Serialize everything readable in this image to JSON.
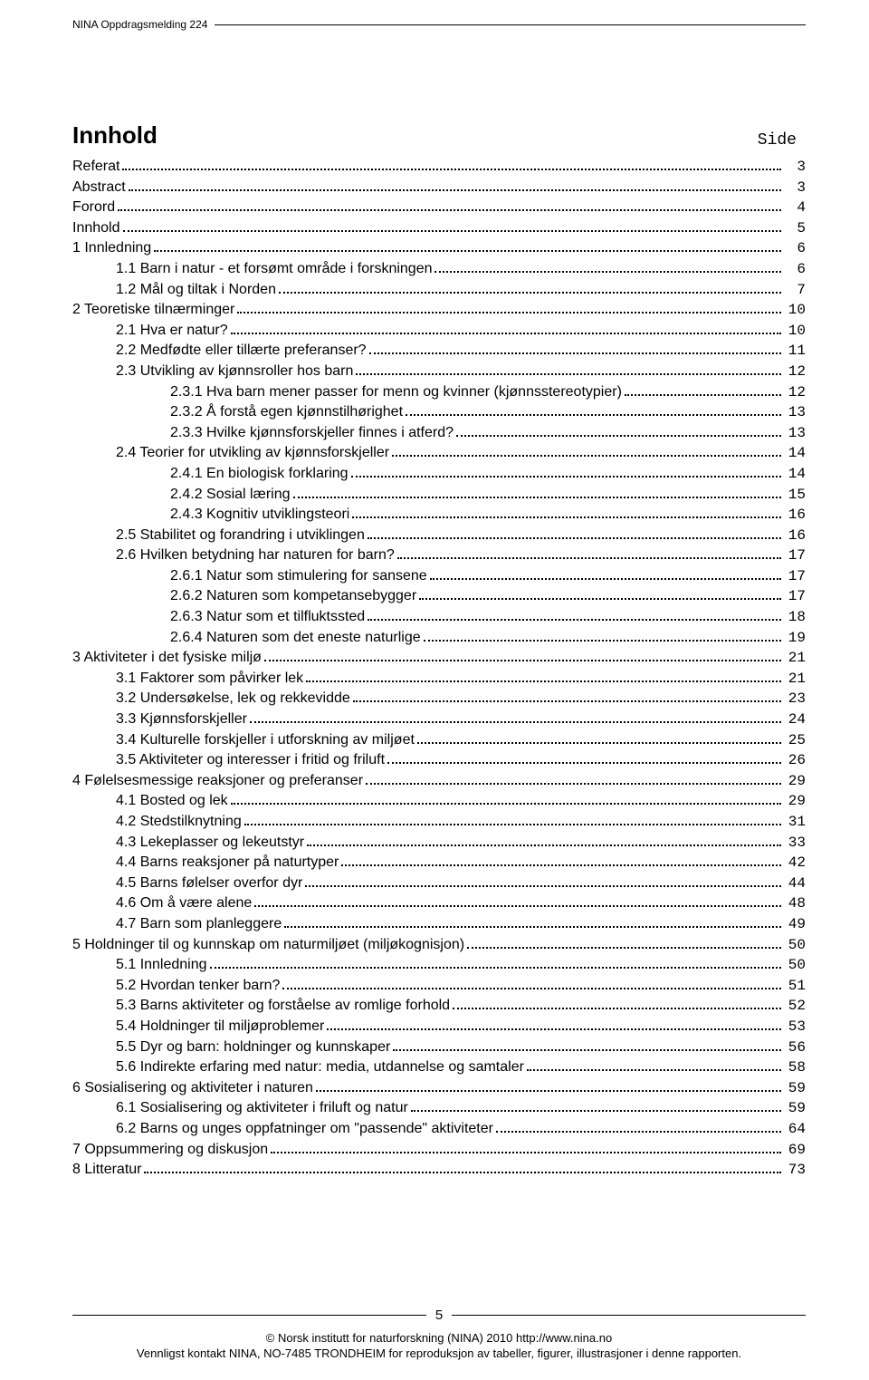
{
  "header": "NINA Oppdragsmelding 224",
  "title": "Innhold",
  "side_label": "Side",
  "toc": [
    {
      "lvl": 0,
      "label": "Referat",
      "page": "3"
    },
    {
      "lvl": 0,
      "label": "Abstract",
      "page": "3"
    },
    {
      "lvl": 0,
      "label": "Forord",
      "page": "4"
    },
    {
      "lvl": 0,
      "label": "Innhold",
      "page": "5"
    },
    {
      "lvl": 0,
      "label": "1 Innledning",
      "page": "6"
    },
    {
      "lvl": 1,
      "label": "1.1 Barn i natur - et forsømt område i forskningen",
      "page": "6"
    },
    {
      "lvl": 1,
      "label": "1.2 Mål og tiltak i Norden",
      "page": "7"
    },
    {
      "lvl": 0,
      "label": "2 Teoretiske tilnærminger",
      "page": "10"
    },
    {
      "lvl": 1,
      "label": "2.1 Hva er natur?",
      "page": "10"
    },
    {
      "lvl": 1,
      "label": "2.2 Medfødte eller tillærte preferanser?",
      "page": "11"
    },
    {
      "lvl": 1,
      "label": "2.3 Utvikling av kjønnsroller hos barn",
      "page": "12"
    },
    {
      "lvl": 2,
      "label": "2.3.1 Hva barn mener passer for menn og kvinner (kjønnsstereotypier)",
      "page": "12"
    },
    {
      "lvl": 2,
      "label": "2.3.2 Å forstå egen kjønnstilhørighet",
      "page": "13"
    },
    {
      "lvl": 2,
      "label": "2.3.3 Hvilke kjønnsforskjeller finnes i atferd?",
      "page": "13"
    },
    {
      "lvl": 1,
      "label": "2.4 Teorier for utvikling av kjønnsforskjeller",
      "page": "14"
    },
    {
      "lvl": 2,
      "label": "2.4.1 En biologisk forklaring",
      "page": "14"
    },
    {
      "lvl": 2,
      "label": "2.4.2 Sosial læring",
      "page": "15"
    },
    {
      "lvl": 2,
      "label": "2.4.3 Kognitiv utviklingsteori",
      "page": "16"
    },
    {
      "lvl": 1,
      "label": "2.5 Stabilitet og forandring i utviklingen",
      "page": "16"
    },
    {
      "lvl": 1,
      "label": "2.6 Hvilken betydning har naturen for barn?",
      "page": "17"
    },
    {
      "lvl": 2,
      "label": "2.6.1 Natur som stimulering for sansene",
      "page": "17"
    },
    {
      "lvl": 2,
      "label": "2.6.2 Naturen som kompetansebygger",
      "page": "17"
    },
    {
      "lvl": 2,
      "label": "2.6.3 Natur som et tilfluktssted",
      "page": "18"
    },
    {
      "lvl": 2,
      "label": "2.6.4 Naturen som det eneste naturlige",
      "page": "19"
    },
    {
      "lvl": 0,
      "label": "3 Aktiviteter i det fysiske miljø",
      "page": "21"
    },
    {
      "lvl": 1,
      "label": "3.1 Faktorer som påvirker lek",
      "page": "21"
    },
    {
      "lvl": 1,
      "label": "3.2 Undersøkelse, lek og rekkevidde",
      "page": "23"
    },
    {
      "lvl": 1,
      "label": "3.3 Kjønnsforskjeller",
      "page": "24"
    },
    {
      "lvl": 1,
      "label": "3.4 Kulturelle forskjeller i utforskning av miljøet",
      "page": "25"
    },
    {
      "lvl": 1,
      "label": "3.5 Aktiviteter og interesser i fritid og friluft",
      "page": "26"
    },
    {
      "lvl": 0,
      "label": "4 Følelsesmessige reaksjoner og preferanser",
      "page": "29"
    },
    {
      "lvl": 1,
      "label": "4.1 Bosted og lek",
      "page": "29"
    },
    {
      "lvl": 1,
      "label": "4.2 Stedstilknytning",
      "page": "31"
    },
    {
      "lvl": 1,
      "label": "4.3 Lekeplasser og lekeutstyr",
      "page": "33"
    },
    {
      "lvl": 1,
      "label": "4.4 Barns reaksjoner på naturtyper",
      "page": "42"
    },
    {
      "lvl": 1,
      "label": "4.5 Barns følelser overfor dyr",
      "page": "44"
    },
    {
      "lvl": 1,
      "label": "4.6 Om å være alene",
      "page": "48"
    },
    {
      "lvl": 1,
      "label": "4.7 Barn som planleggere",
      "page": "49"
    },
    {
      "lvl": 0,
      "label": "5 Holdninger til og kunnskap om naturmiljøet (miljøkognisjon)",
      "page": "50"
    },
    {
      "lvl": 1,
      "label": "5.1 Innledning",
      "page": "50"
    },
    {
      "lvl": 1,
      "label": "5.2 Hvordan tenker barn?",
      "page": "51"
    },
    {
      "lvl": 1,
      "label": "5.3 Barns aktiviteter og forståelse av romlige forhold",
      "page": "52"
    },
    {
      "lvl": 1,
      "label": "5.4 Holdninger til miljøproblemer",
      "page": "53"
    },
    {
      "lvl": 1,
      "label": "5.5 Dyr og barn: holdninger og kunnskaper",
      "page": "56"
    },
    {
      "lvl": 1,
      "label": "5.6 Indirekte erfaring med natur: media, utdannelse og samtaler",
      "page": "58"
    },
    {
      "lvl": 0,
      "label": "6 Sosialisering og aktiviteter i naturen",
      "page": "59"
    },
    {
      "lvl": 1,
      "label": "6.1 Sosialisering og aktiviteter i friluft og natur",
      "page": "59"
    },
    {
      "lvl": 1,
      "label": "6.2 Barns og unges oppfatninger om \"passende\" aktiviteter",
      "page": "64"
    },
    {
      "lvl": 0,
      "label": "7 Oppsummering og diskusjon",
      "page": "69"
    },
    {
      "lvl": 0,
      "label": "8 Litteratur",
      "page": "73"
    }
  ],
  "footer_page": "5",
  "footer_line1": "© Norsk institutt for naturforskning (NINA) 2010 http://www.nina.no",
  "footer_line2": "Vennligst kontakt NINA, NO-7485 TRONDHEIM for reproduksjon av tabeller, figurer, illustrasjoner i denne rapporten."
}
